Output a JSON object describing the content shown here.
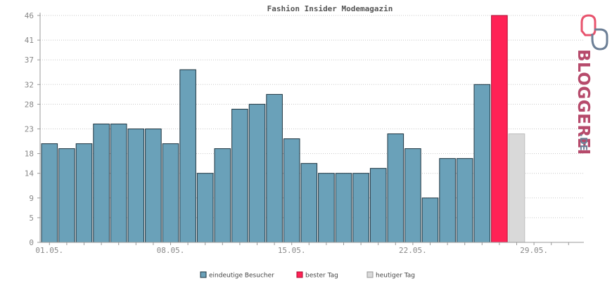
{
  "chart_data": {
    "type": "bar",
    "title": "Fashion Insider Modemagazin",
    "ylim": [
      0,
      46
    ],
    "yticks": [
      0,
      5,
      9,
      14,
      18,
      23,
      28,
      32,
      37,
      41,
      46
    ],
    "x_tick_labels": [
      {
        "index": 0,
        "label": "01.05."
      },
      {
        "index": 7,
        "label": "08.05."
      },
      {
        "index": 14,
        "label": "15.05."
      },
      {
        "index": 21,
        "label": "22.05."
      },
      {
        "index": 28,
        "label": "29.05."
      }
    ],
    "day_slots": 31,
    "series": [
      {
        "name": "eindeutige Besucher",
        "color": "#6aa1b9",
        "values": [
          20,
          19,
          20,
          24,
          24,
          23,
          23,
          20,
          35,
          14,
          19,
          27,
          28,
          30,
          21,
          16,
          14,
          14,
          14,
          15,
          22,
          19,
          9,
          17,
          17,
          32
        ]
      },
      {
        "name": "bester Tag",
        "color": "#ff2255",
        "index": 26,
        "value": 46
      },
      {
        "name": "heutiger Tag",
        "color": "#d9d9d9",
        "index": 27,
        "value": 22
      }
    ],
    "grid": true,
    "legend_position": "bottom"
  },
  "logo": {
    "text": "BLOGGEREI",
    "suffix": ".DE"
  }
}
